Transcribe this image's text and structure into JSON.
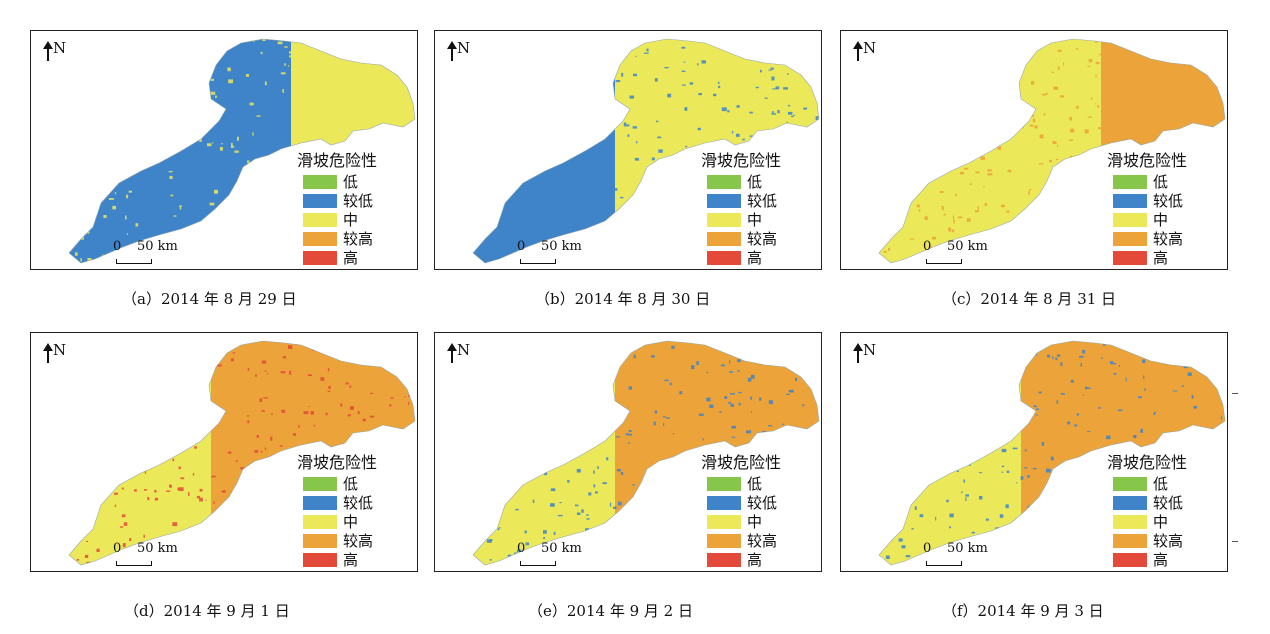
{
  "north_label": "N",
  "scale": {
    "zero": "0",
    "distance": "50 km"
  },
  "legend": {
    "title": "滑坡危险性",
    "items": [
      {
        "label": "低",
        "color": "#86c64a"
      },
      {
        "label": "较低",
        "color": "#3f84c9"
      },
      {
        "label": "中",
        "color": "#ebe85a"
      },
      {
        "label": "较高",
        "color": "#eba33a"
      },
      {
        "label": "高",
        "color": "#e44a3a"
      }
    ]
  },
  "panels": [
    {
      "caption": "（a）2014 年 8 月 29 日",
      "west_color": "#3f84c9",
      "east_color": "#3f84c9",
      "ne_color": "#ebe85a",
      "speckle_color": "#ebe85a"
    },
    {
      "caption": "（b）2014 年 8 月 30 日",
      "west_color": "#3f84c9",
      "east_color": "#ebe85a",
      "ne_color": "#ebe85a",
      "speckle_color": "#3f84c9"
    },
    {
      "caption": "（c）2014 年 8 月 31 日",
      "west_color": "#ebe85a",
      "east_color": "#ebe85a",
      "ne_color": "#eba33a",
      "speckle_color": "#eba33a"
    },
    {
      "caption": "（d）2014 年 9 月 1 日",
      "west_color": "#ebe85a",
      "east_color": "#eba33a",
      "ne_color": "#eba33a",
      "speckle_color": "#e44a3a"
    },
    {
      "caption": "（e）2014 年 9 月 2 日",
      "west_color": "#ebe85a",
      "east_color": "#eba33a",
      "ne_color": "#eba33a",
      "speckle_color": "#3f84c9"
    },
    {
      "caption": "（f）2014 年 9 月 3 日",
      "west_color": "#ebe85a",
      "east_color": "#eba33a",
      "ne_color": "#eba33a",
      "speckle_color": "#3f84c9"
    }
  ]
}
